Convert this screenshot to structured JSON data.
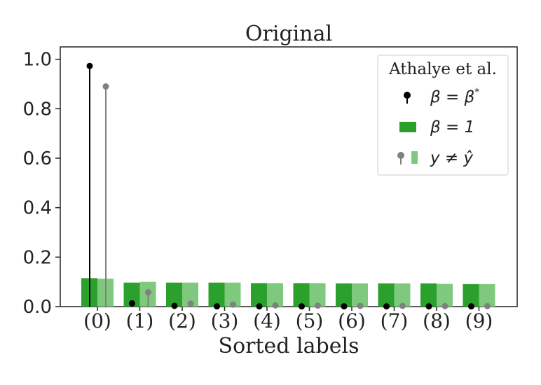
{
  "chart_data": {
    "type": "bar",
    "title": "Original",
    "xlabel": "Sorted labels",
    "ylabel": "",
    "categories": [
      "(0)",
      "(1)",
      "(2)",
      "(3)",
      "(4)",
      "(5)",
      "(6)",
      "(7)",
      "(8)",
      "(9)"
    ],
    "ylim": [
      0,
      1.0
    ],
    "yticks": [
      "0.0",
      "0.2",
      "0.4",
      "0.6",
      "0.8",
      "1.0"
    ],
    "grid": false,
    "series": [
      {
        "name": "β = 1",
        "kind": "bar",
        "color": "#2ca02c",
        "values": [
          0.115,
          0.097,
          0.097,
          0.097,
          0.095,
          0.095,
          0.094,
          0.094,
          0.094,
          0.091
        ]
      },
      {
        "name": "y ≠ ŷ",
        "kind": "bar",
        "color": "#7fc97f",
        "values": [
          0.113,
          0.1,
          0.097,
          0.097,
          0.095,
          0.095,
          0.094,
          0.094,
          0.092,
          0.091
        ]
      },
      {
        "name": "β = β*",
        "kind": "stem",
        "color": "#000000",
        "values": [
          0.973,
          0.013,
          0.003,
          0.001,
          0.001,
          0.001,
          0.001,
          0.001,
          0.001,
          0.001
        ]
      },
      {
        "name": "y ≠ ŷ",
        "kind": "stem",
        "color": "#808080",
        "values": [
          0.89,
          0.058,
          0.012,
          0.008,
          0.005,
          0.004,
          0.003,
          0.003,
          0.002,
          0.002
        ]
      }
    ],
    "legend": {
      "title": "Athalye et al.",
      "placement": "top-right",
      "entries": [
        {
          "symbol": "black-stem",
          "label": "β = β*"
        },
        {
          "symbol": "green-bar",
          "label": "β = 1"
        },
        {
          "symbol": "gray-stem-and-light-bar",
          "label": "y ≠ ŷ"
        }
      ]
    }
  }
}
